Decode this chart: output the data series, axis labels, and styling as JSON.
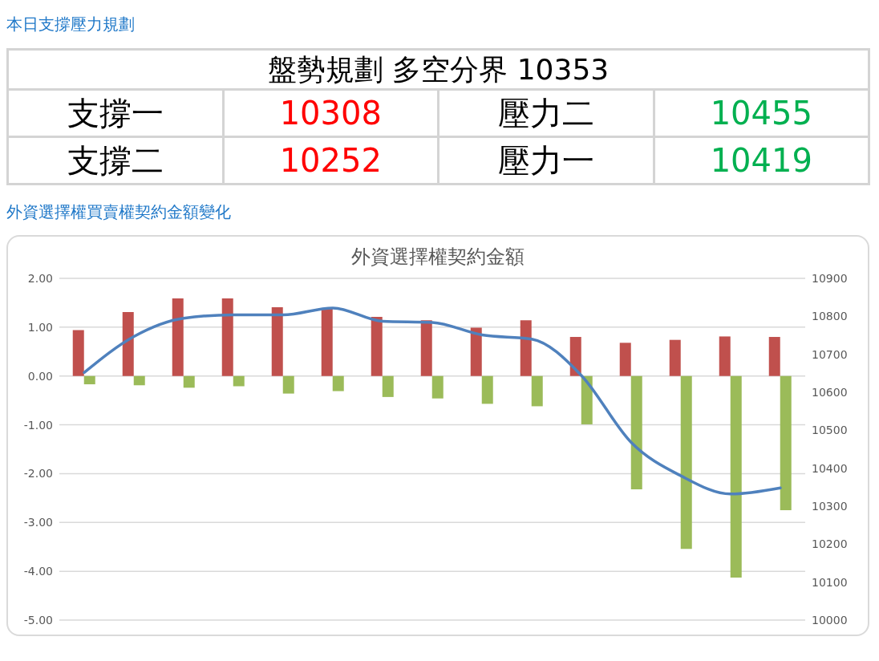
{
  "chart_data": [
    {
      "type": "other",
      "title": "本日支撐壓力規劃",
      "annotations": [
        "盤勢規劃 多空分界 10353",
        "支撐一",
        "10308",
        "壓力二",
        "10455",
        "支撐二",
        "10252",
        "壓力一",
        "10419"
      ],
      "colors": [
        "#000000",
        "#000000",
        "#ff0000",
        "#000000",
        "#00b050",
        "#000000",
        "#ff0000",
        "#000000",
        "#00b050"
      ]
    },
    {
      "type": "bar",
      "title": "外資選擇權買賣權契約金額變化",
      "subtitle": "外資選擇權契約金額",
      "categories": [
        null,
        null,
        null,
        null,
        null,
        null,
        null,
        null,
        null,
        null,
        null,
        null,
        null,
        null,
        null
      ],
      "series": [
        {
          "type": "bar",
          "color": "#c0504d",
          "values": [
            0.94,
            1.31,
            1.59,
            1.59,
            1.41,
            1.38,
            1.21,
            1.14,
            0.99,
            1.14,
            0.8,
            0.68,
            0.74,
            0.81,
            0.8
          ]
        },
        {
          "type": "bar",
          "color": "#9bbb59",
          "values": [
            -0.17,
            -0.19,
            -0.24,
            -0.21,
            -0.36,
            -0.31,
            -0.43,
            -0.46,
            -0.57,
            -0.62,
            -0.99,
            -2.32,
            -3.54,
            -4.13,
            -2.75
          ]
        },
        {
          "type": "line",
          "color": "#4f81bd",
          "axis": "y2",
          "values": [
            10652,
            10747,
            10795,
            10804,
            10804,
            10822,
            10787,
            10784,
            10751,
            10740,
            10644,
            10468,
            10380,
            10332,
            10348
          ]
        }
      ],
      "ylim": [
        -5,
        2
      ],
      "yticks": [
        {
          "value": -5,
          "label": "-5.00"
        },
        {
          "value": -4,
          "label": "-4.00"
        },
        {
          "value": -3,
          "label": "-3.00"
        },
        {
          "value": -2,
          "label": "-2.00"
        },
        {
          "value": -1,
          "label": "-1.00"
        },
        {
          "value": 0,
          "label": "0.00"
        },
        {
          "value": 1,
          "label": "1.00"
        },
        {
          "value": 2,
          "label": "2.00"
        }
      ],
      "y2lim": [
        10000,
        10900
      ],
      "y2ticks": [
        10000,
        10100,
        10200,
        10300,
        10400,
        10500,
        10600,
        10700,
        10800,
        10900
      ],
      "grid": "y",
      "marker": "none"
    }
  ]
}
